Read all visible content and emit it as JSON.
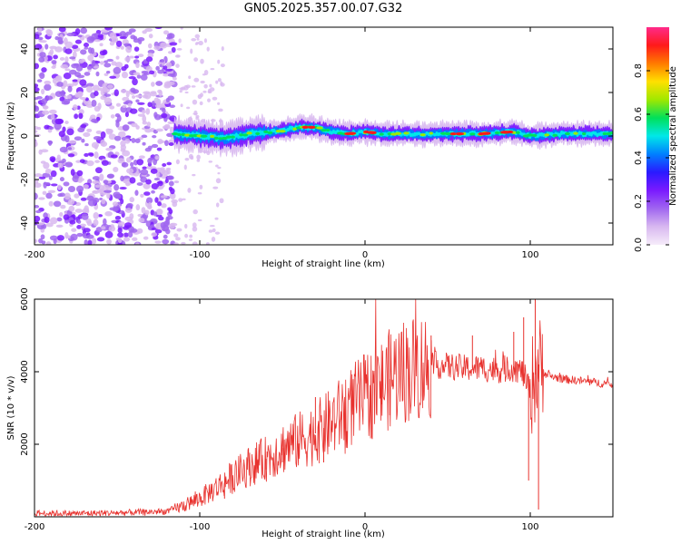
{
  "title": "GN05.2025.357.00.07.G32",
  "colors": {
    "snr_line": "#e8322e",
    "axis": "#000000",
    "colormap": [
      "#f6ecfa",
      "#d8b8f0",
      "#a066f0",
      "#7a1aff",
      "#2a1aff",
      "#0080ff",
      "#00e8e8",
      "#00e05a",
      "#a0e800",
      "#ffe000",
      "#ff7a00",
      "#ff1a1a",
      "#ff2a8a"
    ]
  },
  "chart_data": [
    {
      "type": "heatmap",
      "title": "GN05.2025.357.00.07.G32",
      "xlabel": "Height of straight line (km)",
      "ylabel": "Frequency (Hz)",
      "xlim": [
        -200,
        150
      ],
      "ylim": [
        -50,
        50
      ],
      "xticks": [
        -200,
        -100,
        0,
        100
      ],
      "xtick_labels": [
        "-200",
        "-100",
        "0",
        "100"
      ],
      "yticks": [
        -40,
        -20,
        0,
        20,
        40
      ],
      "ytick_labels": [
        "-40",
        "-20",
        "0",
        "20",
        "40"
      ],
      "colorbar": {
        "label": "Normalized spectral amplitude",
        "range": [
          0.0,
          1.0
        ],
        "ticks": [
          0.0,
          0.2,
          0.4,
          0.6,
          0.8
        ],
        "tick_labels": [
          "0.0",
          "0.2",
          "0.4",
          "0.6",
          "0.8"
        ]
      },
      "description_points": {
        "noise_region_x": [
          -200,
          -115
        ],
        "transition_region_x": [
          -115,
          -85
        ],
        "ridge": [
          {
            "x": -115,
            "y": 1
          },
          {
            "x": -100,
            "y": 0
          },
          {
            "x": -85,
            "y": -1
          },
          {
            "x": -70,
            "y": 1
          },
          {
            "x": -55,
            "y": 2
          },
          {
            "x": -40,
            "y": 4
          },
          {
            "x": -30,
            "y": 4
          },
          {
            "x": -20,
            "y": 2
          },
          {
            "x": -10,
            "y": 1
          },
          {
            "x": 0,
            "y": 2
          },
          {
            "x": 10,
            "y": 1
          },
          {
            "x": 30,
            "y": 1
          },
          {
            "x": 50,
            "y": 1
          },
          {
            "x": 70,
            "y": 1
          },
          {
            "x": 90,
            "y": 2
          },
          {
            "x": 100,
            "y": 0
          },
          {
            "x": 120,
            "y": 1
          },
          {
            "x": 150,
            "y": 1
          }
        ],
        "peaks": [
          {
            "x": -35,
            "y": 5
          },
          {
            "x": -10,
            "y": 1
          },
          {
            "x": 2,
            "y": 2
          },
          {
            "x": 55,
            "y": 1
          },
          {
            "x": 72,
            "y": 1
          },
          {
            "x": 85,
            "y": 1
          }
        ]
      }
    },
    {
      "type": "line",
      "xlabel": "Height of straight line (km)",
      "ylabel": "SNR (10 * v/v)",
      "xlim": [
        -200,
        150
      ],
      "ylim": [
        0,
        6000
      ],
      "xticks": [
        -200,
        -100,
        0,
        100
      ],
      "xtick_labels": [
        "-200",
        "-100",
        "0",
        "100"
      ],
      "yticks": [
        2000,
        4000,
        6000
      ],
      "ytick_labels": [
        "2000",
        "4000",
        "6000"
      ],
      "series": [
        {
          "name": "SNR",
          "x": [
            -200,
            -180,
            -160,
            -140,
            -120,
            -110,
            -100,
            -90,
            -80,
            -70,
            -60,
            -50,
            -40,
            -30,
            -20,
            -10,
            0,
            10,
            20,
            30,
            40,
            50,
            60,
            70,
            80,
            90,
            95,
            100,
            105,
            110,
            120,
            130,
            140,
            150
          ],
          "y": [
            100,
            90,
            100,
            120,
            150,
            300,
            500,
            800,
            1100,
            1400,
            1600,
            1900,
            2100,
            2300,
            2600,
            3000,
            3300,
            3600,
            4000,
            4100,
            4200,
            4150,
            4100,
            4100,
            4050,
            4100,
            4000,
            3500,
            4200,
            3900,
            3800,
            3750,
            3700,
            3650
          ]
        }
      ],
      "spikes": [
        {
          "x": -85,
          "y": 500
        },
        {
          "x": -60,
          "y": 1300
        },
        {
          "x": -50,
          "y": 1500
        },
        {
          "x": -30,
          "y": 3300
        },
        {
          "x": -25,
          "y": 1500
        },
        {
          "x": 10,
          "y": 3100
        },
        {
          "x": 15,
          "y": 2800
        },
        {
          "x": 40,
          "y": 5000
        },
        {
          "x": 65,
          "y": 5000
        },
        {
          "x": 90,
          "y": 5100
        },
        {
          "x": 96,
          "y": 5500
        },
        {
          "x": 99,
          "y": 1000
        },
        {
          "x": 103,
          "y": 6000
        },
        {
          "x": 105,
          "y": 200
        }
      ]
    }
  ]
}
